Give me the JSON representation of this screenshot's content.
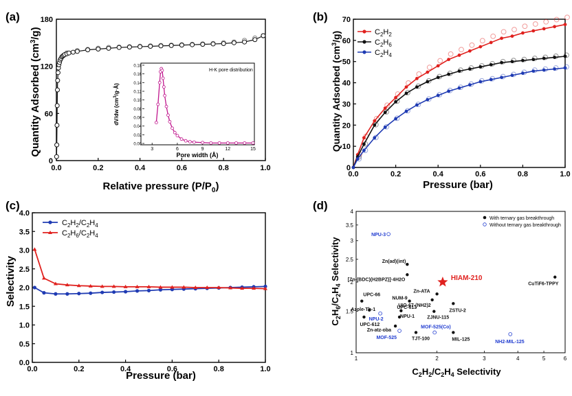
{
  "chart_data": [
    {
      "panel": "(a)",
      "type": "scatter",
      "xlabel": "Relative pressure (P/P0)",
      "ylabel": "Quantity Adsorbed (cm3/g)",
      "xlim": [
        0,
        1.0
      ],
      "ylim": [
        0,
        180
      ],
      "xticks": [
        "0.0",
        "0.2",
        "0.4",
        "0.6",
        "0.8",
        "1.0"
      ],
      "yticks": [
        "0",
        "60",
        "120",
        "180"
      ],
      "series": [
        {
          "name": "adsorption",
          "marker": "filled",
          "color": "#111111",
          "x": [
            0.001,
            0.002,
            0.003,
            0.004,
            0.005,
            0.006,
            0.008,
            0.01,
            0.012,
            0.015,
            0.018,
            0.022,
            0.026,
            0.03,
            0.035,
            0.04,
            0.05,
            0.06,
            0.08,
            0.1,
            0.15,
            0.2,
            0.25,
            0.3,
            0.35,
            0.4,
            0.45,
            0.5,
            0.55,
            0.6,
            0.65,
            0.7,
            0.75,
            0.8,
            0.85,
            0.9,
            0.95,
            0.99
          ],
          "y": [
            5,
            20,
            45,
            70,
            90,
            102,
            112,
            118,
            122,
            125,
            128,
            130,
            132,
            133,
            134,
            135,
            136,
            137,
            138,
            139,
            141,
            142,
            143,
            144,
            144.5,
            145,
            145.5,
            146,
            146.5,
            147,
            147.5,
            148,
            148.5,
            149,
            150,
            151,
            154,
            159
          ]
        },
        {
          "name": "desorption",
          "marker": "open",
          "color": "#111111",
          "x": [
            0.05,
            0.1,
            0.15,
            0.2,
            0.25,
            0.3,
            0.35,
            0.4,
            0.45,
            0.5,
            0.55,
            0.6,
            0.65,
            0.7,
            0.75,
            0.8,
            0.85,
            0.9,
            0.95,
            0.99
          ],
          "y": [
            137,
            140,
            141.5,
            143,
            144,
            144.5,
            145,
            145.5,
            146,
            146.5,
            147,
            147.5,
            148,
            148.5,
            149,
            150,
            151,
            153,
            156,
            159
          ]
        }
      ],
      "inset": {
        "type": "line",
        "title": "H-K pore distribution",
        "xlabel": "Pore width (Å)",
        "ylabel": "dV/dw (cm3/g·Å)",
        "xlim": [
          2,
          15
        ],
        "ylim": [
          0,
          0.18
        ],
        "xticks": [
          "3",
          "6",
          "9",
          "12",
          "15"
        ],
        "yticks": [
          "0.00",
          "0.02",
          "0.04",
          "0.06",
          "0.08",
          "0.10",
          "0.12",
          "0.14",
          "0.16",
          "0.18"
        ],
        "color": "#c0158d",
        "x": [
          3.5,
          3.7,
          3.9,
          4.0,
          4.1,
          4.2,
          4.3,
          4.4,
          4.5,
          4.7,
          4.9,
          5.1,
          5.4,
          5.7,
          6.0,
          6.5,
          7.0,
          7.5,
          8.0,
          9.0,
          10.0,
          11.0,
          12.0,
          13.0,
          14.0,
          15.0
        ],
        "y": [
          0.048,
          0.09,
          0.14,
          0.165,
          0.172,
          0.168,
          0.15,
          0.13,
          0.11,
          0.085,
          0.065,
          0.05,
          0.035,
          0.025,
          0.018,
          0.01,
          0.006,
          0.004,
          0.003,
          0.002,
          0.001,
          0.001,
          0.001,
          0.001,
          0.001,
          0.001
        ]
      }
    },
    {
      "panel": "(b)",
      "type": "line",
      "xlabel": "Pressure (bar)",
      "ylabel": "Quantity Adsorbed (cm3/g)",
      "xlim": [
        0,
        1.0
      ],
      "ylim": [
        0,
        70
      ],
      "xticks": [
        "0.0",
        "0.2",
        "0.4",
        "0.6",
        "0.8",
        "1.0"
      ],
      "yticks": [
        "0",
        "10",
        "20",
        "30",
        "40",
        "50",
        "60",
        "70"
      ],
      "legend_position": "top-left",
      "series": [
        {
          "name": "C2H2",
          "color": "#e0211e",
          "x": [
            0.0,
            0.02,
            0.05,
            0.1,
            0.15,
            0.2,
            0.25,
            0.3,
            0.35,
            0.4,
            0.45,
            0.5,
            0.55,
            0.6,
            0.65,
            0.7,
            0.75,
            0.8,
            0.85,
            0.9,
            0.95,
            1.0
          ],
          "y": [
            0,
            6,
            14,
            22,
            28,
            33,
            38,
            42,
            45,
            48,
            51,
            53,
            55,
            57,
            59,
            61,
            62,
            63.5,
            64.5,
            65.5,
            66.5,
            67.5
          ]
        },
        {
          "name": "C2H6",
          "color": "#111111",
          "x": [
            0.0,
            0.02,
            0.05,
            0.1,
            0.15,
            0.2,
            0.25,
            0.3,
            0.35,
            0.4,
            0.45,
            0.5,
            0.55,
            0.6,
            0.65,
            0.7,
            0.75,
            0.8,
            0.85,
            0.9,
            0.95,
            1.0
          ],
          "y": [
            0,
            5,
            11,
            20,
            26,
            31,
            35,
            38,
            40.5,
            42.5,
            44,
            45.5,
            46.5,
            47.5,
            48.5,
            49.5,
            50,
            50.5,
            51,
            51.5,
            52,
            52.5
          ]
        },
        {
          "name": "C2H4",
          "color": "#1f3bb3",
          "x": [
            0.0,
            0.02,
            0.05,
            0.1,
            0.15,
            0.2,
            0.25,
            0.3,
            0.35,
            0.4,
            0.45,
            0.5,
            0.55,
            0.6,
            0.65,
            0.7,
            0.75,
            0.8,
            0.85,
            0.9,
            0.95,
            1.0
          ],
          "y": [
            0,
            4,
            8,
            14,
            19,
            23,
            26.5,
            29.5,
            32,
            34,
            36,
            37.5,
            39,
            40.5,
            41.5,
            42.5,
            43.5,
            44.5,
            45.5,
            46,
            46.5,
            47
          ]
        }
      ]
    },
    {
      "panel": "(c)",
      "type": "line",
      "xlabel": "Pressure (bar)",
      "ylabel": "Selectivity",
      "xlim": [
        0,
        1.0
      ],
      "ylim": [
        0,
        4.0
      ],
      "xticks": [
        "0.0",
        "0.2",
        "0.4",
        "0.6",
        "0.8",
        "1.0"
      ],
      "yticks": [
        "0.0",
        "0.5",
        "1.0",
        "1.5",
        "2.0",
        "2.5",
        "3.0",
        "3.5",
        "4.0"
      ],
      "legend_position": "top-left",
      "series": [
        {
          "name": "C2H2/C2H4",
          "color": "#1f3bb3",
          "x": [
            0.01,
            0.05,
            0.1,
            0.15,
            0.2,
            0.25,
            0.3,
            0.35,
            0.4,
            0.45,
            0.5,
            0.55,
            0.6,
            0.65,
            0.7,
            0.75,
            0.8,
            0.85,
            0.9,
            0.95,
            1.0
          ],
          "y": [
            2.0,
            1.86,
            1.83,
            1.83,
            1.84,
            1.85,
            1.87,
            1.88,
            1.89,
            1.91,
            1.92,
            1.94,
            1.95,
            1.96,
            1.97,
            1.98,
            1.99,
            2.0,
            2.01,
            2.02,
            2.03
          ]
        },
        {
          "name": "C2H6/C2H4",
          "color": "#e0211e",
          "x": [
            0.01,
            0.05,
            0.1,
            0.15,
            0.2,
            0.25,
            0.3,
            0.35,
            0.4,
            0.45,
            0.5,
            0.55,
            0.6,
            0.65,
            0.7,
            0.75,
            0.8,
            0.85,
            0.9,
            0.95,
            1.0
          ],
          "y": [
            3.02,
            2.25,
            2.1,
            2.07,
            2.05,
            2.04,
            2.03,
            2.03,
            2.02,
            2.02,
            2.02,
            2.01,
            2.01,
            2.01,
            2.0,
            2.0,
            2.0,
            1.99,
            1.98,
            1.98,
            1.97
          ]
        }
      ]
    },
    {
      "panel": "(d)",
      "type": "scatter",
      "xlabel": "C2H2/C2H4 Selectivity",
      "ylabel": "C2H6/C2H4 Selectivity",
      "xscale": "log",
      "yscale": "log",
      "xlim": [
        1,
        6
      ],
      "ylim": [
        1,
        4
      ],
      "xticks": [
        "1",
        "2",
        "3",
        "4",
        "5",
        "6"
      ],
      "yticks": [
        "1",
        "1.5",
        "2",
        "2.5",
        "3",
        "3.5",
        "4"
      ],
      "legend": [
        "With ternary gas breakthrough",
        "Without ternary gas breakthrough"
      ],
      "legend_position": "top-right",
      "highlight": {
        "name": "HIAM-210",
        "x": 2.1,
        "y": 2.0,
        "color": "#e0211e"
      },
      "points": [
        {
          "name": "NPU-3",
          "x": 1.32,
          "y": 3.2,
          "kind": "without"
        },
        {
          "name": "Zn(ad)(int)",
          "x": 1.55,
          "y": 2.38,
          "kind": "with"
        },
        {
          "name": "[Zn-(BDC)(H2BPZ)]·4H2O",
          "x": 1.55,
          "y": 2.15,
          "kind": "with"
        },
        {
          "name": "Zn-ATA",
          "x": 2.0,
          "y": 1.78,
          "kind": "with"
        },
        {
          "name": "NUM-9",
          "x": 1.58,
          "y": 1.66,
          "kind": "with"
        },
        {
          "name": "UIO-67-(NH2)2",
          "x": 1.92,
          "y": 1.68,
          "kind": "with"
        },
        {
          "name": "ZSTU-2",
          "x": 2.3,
          "y": 1.62,
          "kind": "with"
        },
        {
          "name": "UPC-66",
          "x": 1.05,
          "y": 1.66,
          "kind": "with"
        },
        {
          "name": "UPC-613",
          "x": 1.47,
          "y": 1.51,
          "kind": "with"
        },
        {
          "name": "Azole-Th-1",
          "x": 1.12,
          "y": 1.52,
          "kind": "with"
        },
        {
          "name": "ZJNU-115",
          "x": 1.95,
          "y": 1.5,
          "kind": "with"
        },
        {
          "name": "NPU-2",
          "x": 1.23,
          "y": 1.47,
          "kind": "without"
        },
        {
          "name": "NPU-1",
          "x": 1.45,
          "y": 1.42,
          "kind": "with"
        },
        {
          "name": "UPC-612",
          "x": 1.07,
          "y": 1.42,
          "kind": "with"
        },
        {
          "name": "MOF-525(Co)",
          "x": 1.96,
          "y": 1.22,
          "kind": "without"
        },
        {
          "name": "Zn-atz-oba",
          "x": 1.4,
          "y": 1.3,
          "kind": "with"
        },
        {
          "name": "MOF-525",
          "x": 1.45,
          "y": 1.24,
          "kind": "without"
        },
        {
          "name": "TJT-100",
          "x": 1.67,
          "y": 1.22,
          "kind": "with"
        },
        {
          "name": "MIL-125",
          "x": 2.3,
          "y": 1.22,
          "kind": "with"
        },
        {
          "name": "NH2-MIL-125",
          "x": 3.75,
          "y": 1.2,
          "kind": "without"
        },
        {
          "name": "CuTiF6-TPPY",
          "x": 5.5,
          "y": 2.1,
          "kind": "with"
        }
      ]
    }
  ],
  "panels": {
    "a": {
      "label": "(a)",
      "ylabel_main": "Quantity Adsorbed (cm",
      "ylabel_sup": "3",
      "ylabel_end": "/g)",
      "xlabel_main": "Relative pressure (P/P",
      "xlabel_sub": "0",
      "xlabel_end": ")",
      "inset_title": "H-K pore distribution",
      "inset_xlabel": "Pore width (Å)",
      "inset_ylabel_a": "dV/dw (cm",
      "inset_ylabel_sup": "3",
      "inset_ylabel_b": "/g·Å)"
    },
    "b": {
      "label": "(b)",
      "ylabel_main": "Quantity Adsorbed (cm",
      "ylabel_sup": "3",
      "ylabel_end": "/g)",
      "xlabel": "Pressure (bar)",
      "legend": [
        {
          "pre": "C",
          "sub1": "2",
          "mid": "H",
          "sub2": "2"
        },
        {
          "pre": "C",
          "sub1": "2",
          "mid": "H",
          "sub2": "6"
        },
        {
          "pre": "C",
          "sub1": "2",
          "mid": "H",
          "sub2": "4"
        }
      ]
    },
    "c": {
      "label": "(c)",
      "ylabel": "Selectivity",
      "xlabel": "Pressure (bar)",
      "legend": [
        {
          "a": "C",
          "s1": "2",
          "b": "H",
          "s2": "2",
          "c": "/C",
          "s3": "2",
          "d": "H",
          "s4": "4"
        },
        {
          "a": "C",
          "s1": "2",
          "b": "H",
          "s2": "6",
          "c": "/C",
          "s3": "2",
          "d": "H",
          "s4": "4"
        }
      ]
    },
    "d": {
      "label": "(d)",
      "xlabel": {
        "a": "C",
        "s1": "2",
        "b": "H",
        "s2": "2",
        "c": "/C",
        "s3": "2",
        "d": "H",
        "s4": "4",
        "e": " Selectivity"
      },
      "ylabel": {
        "a": "C",
        "s1": "2",
        "b": "H",
        "s2": "6",
        "c": "/C",
        "s3": "2",
        "d": "H",
        "s4": "4",
        "e": " Selectivity"
      },
      "legend_with": "With ternary gas breakthrough",
      "legend_without": "Without ternary gas breakthrough",
      "highlight_label": "HIAM-210"
    }
  }
}
